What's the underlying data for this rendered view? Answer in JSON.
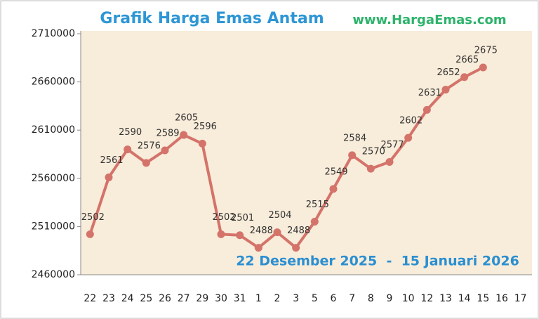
{
  "chart_data": {
    "type": "line",
    "title": "Grafik Harga Emas Antam",
    "subtitle": "www.HargaEmas.com",
    "annotation": "22 Desember 2025  -  15 Januari 2026",
    "categories": [
      "22",
      "23",
      "24",
      "25",
      "26",
      "27",
      "29",
      "30",
      "31",
      "1",
      "2",
      "3",
      "5",
      "6",
      "7",
      "8",
      "9",
      "10",
      "12",
      "13",
      "14",
      "15",
      "16",
      "17"
    ],
    "values": [
      2502000,
      2561000,
      2590000,
      2576000,
      2589000,
      2605000,
      2596000,
      2502000,
      2501000,
      2488000,
      2504000,
      2488000,
      2515000,
      2549000,
      2584000,
      2570000,
      2577000,
      2602000,
      2631000,
      2652000,
      2665000,
      2675000,
      null,
      null
    ],
    "value_labels": [
      "2502",
      "2561",
      "2590",
      "2576",
      "2589",
      "2605",
      "2596",
      "2502",
      "2501",
      "2488",
      "2504",
      "2488",
      "2515",
      "2549",
      "2584",
      "2570",
      "2577",
      "2602",
      "2631",
      "2652",
      "2665",
      "2675",
      null,
      null
    ],
    "color": "#d4736a",
    "ylim": [
      2460000,
      2710000
    ],
    "yticks": [
      2460000,
      2510000,
      2560000,
      2610000,
      2660000,
      2710000
    ],
    "grid": false
  }
}
